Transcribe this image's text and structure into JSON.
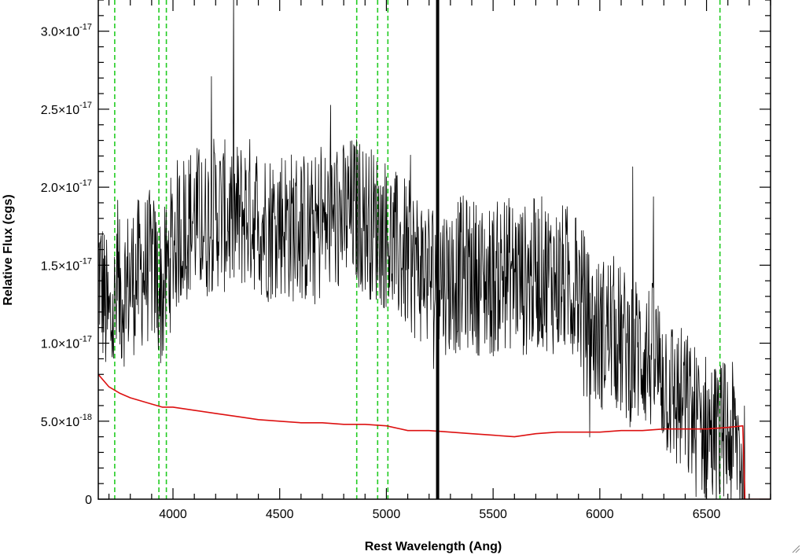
{
  "chart_data": {
    "type": "line",
    "title": "",
    "xlabel": "Rest Wavelength (Ang)",
    "ylabel": "Relative Flux (cgs)",
    "xlim": [
      3650,
      6800
    ],
    "ylim": [
      0,
      3.2e-17
    ],
    "x_ticks": [
      {
        "value": 4000,
        "label": "4000"
      },
      {
        "value": 4500,
        "label": "4500"
      },
      {
        "value": 5000,
        "label": "5000"
      },
      {
        "value": 5500,
        "label": "5500"
      },
      {
        "value": 6000,
        "label": "6000"
      },
      {
        "value": 6500,
        "label": "6500"
      }
    ],
    "y_ticks": [
      {
        "value": 0,
        "mantissa": "0",
        "exponent": ""
      },
      {
        "value": 5e-18,
        "mantissa": "5.0×10",
        "exponent": "-18"
      },
      {
        "value": 1e-17,
        "mantissa": "1.0×10",
        "exponent": "-17"
      },
      {
        "value": 1.5e-17,
        "mantissa": "1.5×10",
        "exponent": "-17"
      },
      {
        "value": 2e-17,
        "mantissa": "2.0×10",
        "exponent": "-17"
      },
      {
        "value": 2.5e-17,
        "mantissa": "2.5×10",
        "exponent": "-17"
      },
      {
        "value": 3e-17,
        "mantissa": "3.0×10",
        "exponent": "-17"
      }
    ],
    "grid": false,
    "reference_lines": {
      "color": "#22cc22",
      "style": "dashed",
      "x": [
        3727,
        3934,
        3969,
        4861,
        4959,
        5007,
        6563
      ]
    },
    "marker_line": {
      "x": 5240,
      "color": "#000000"
    },
    "series": [
      {
        "color": "#000000",
        "style": "noisy-line",
        "x": [
          3650,
          3700,
          3750,
          3800,
          3850,
          3900,
          3950,
          4000,
          4050,
          4100,
          4150,
          4200,
          4250,
          4300,
          4350,
          4400,
          4450,
          4500,
          4550,
          4600,
          4650,
          4700,
          4750,
          4800,
          4850,
          4900,
          4950,
          5000,
          5050,
          5100,
          5150,
          5200,
          5250,
          5300,
          5350,
          5400,
          5450,
          5500,
          5550,
          5600,
          5650,
          5700,
          5750,
          5800,
          5850,
          5900,
          5950,
          6000,
          6050,
          6100,
          6150,
          6200,
          6250,
          6300,
          6350,
          6400,
          6450,
          6500,
          6550,
          6600,
          6650,
          6680
        ],
        "y": [
          1.5e-17,
          1.1e-17,
          1.3e-17,
          1.4e-17,
          1.45e-17,
          1.5e-17,
          1.3e-17,
          1.65e-17,
          1.75e-17,
          1.8e-17,
          1.75e-17,
          1.85e-17,
          1.8e-17,
          1.8e-17,
          1.85e-17,
          1.8e-17,
          1.75e-17,
          1.8e-17,
          1.75e-17,
          1.75e-17,
          1.7e-17,
          1.75e-17,
          1.8e-17,
          1.8e-17,
          1.85e-17,
          1.8e-17,
          1.75e-17,
          1.7e-17,
          1.6e-17,
          1.55e-17,
          1.5e-17,
          1.45e-17,
          1.45e-17,
          1.4e-17,
          1.45e-17,
          1.45e-17,
          1.4e-17,
          1.4e-17,
          1.45e-17,
          1.45e-17,
          1.4e-17,
          1.45e-17,
          1.45e-17,
          1.4e-17,
          1.4e-17,
          1.35e-17,
          1.1e-17,
          1.05e-17,
          1.1e-17,
          1e-17,
          9.5e-18,
          9.5e-18,
          9e-18,
          8e-18,
          6.5e-18,
          6e-18,
          5e-18,
          4.5e-18,
          4e-18,
          4e-18,
          3.5e-18,
          1e-18
        ]
      },
      {
        "color": "#dd1111",
        "style": "line",
        "x": [
          3650,
          3700,
          3750,
          3800,
          3850,
          3900,
          3950,
          4000,
          4100,
          4200,
          4300,
          4400,
          4500,
          4600,
          4700,
          4800,
          4900,
          5000,
          5100,
          5200,
          5300,
          5400,
          5500,
          5600,
          5700,
          5800,
          5900,
          6000,
          6100,
          6200,
          6300,
          6400,
          6500,
          6600,
          6670,
          6680,
          6800
        ],
        "y": [
          8e-18,
          7.2e-18,
          6.8e-18,
          6.5e-18,
          6.3e-18,
          6.1e-18,
          5.9e-18,
          5.9e-18,
          5.7e-18,
          5.5e-18,
          5.3e-18,
          5.1e-18,
          5e-18,
          4.9e-18,
          4.9e-18,
          4.8e-18,
          4.8e-18,
          4.7e-18,
          4.4e-18,
          4.4e-18,
          4.3e-18,
          4.2e-18,
          4.1e-18,
          4e-18,
          4.2e-18,
          4.3e-18,
          4.3e-18,
          4.3e-18,
          4.4e-18,
          4.4e-18,
          4.5e-18,
          4.5e-18,
          4.5e-18,
          4.6e-18,
          4.7e-18,
          0,
          0
        ]
      }
    ]
  }
}
